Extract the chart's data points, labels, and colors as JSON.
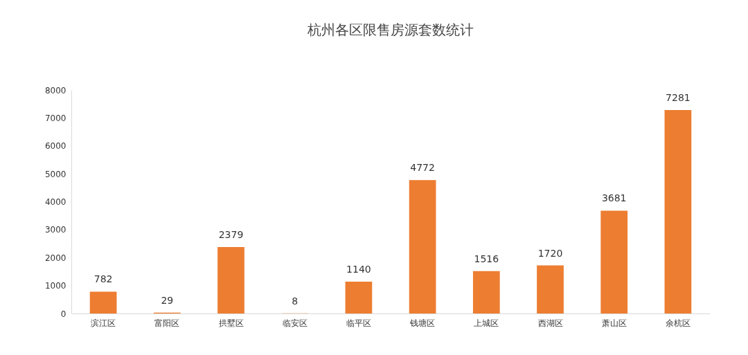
{
  "chart_data": {
    "type": "bar",
    "title": "杭州各区限售房源套数统计",
    "categories": [
      "滨江区",
      "富阳区",
      "拱墅区",
      "临安区",
      "临平区",
      "钱塘区",
      "上城区",
      "西湖区",
      "萧山区",
      "余杭区"
    ],
    "values": [
      782,
      29,
      2379,
      8,
      1140,
      4772,
      1516,
      1720,
      3681,
      7281
    ],
    "color": "#ed7d31",
    "ylim": [
      0,
      8000
    ],
    "yticks": [
      0,
      1000,
      2000,
      3000,
      4000,
      5000,
      6000,
      7000,
      8000
    ],
    "grid": false,
    "data_labels": true
  }
}
